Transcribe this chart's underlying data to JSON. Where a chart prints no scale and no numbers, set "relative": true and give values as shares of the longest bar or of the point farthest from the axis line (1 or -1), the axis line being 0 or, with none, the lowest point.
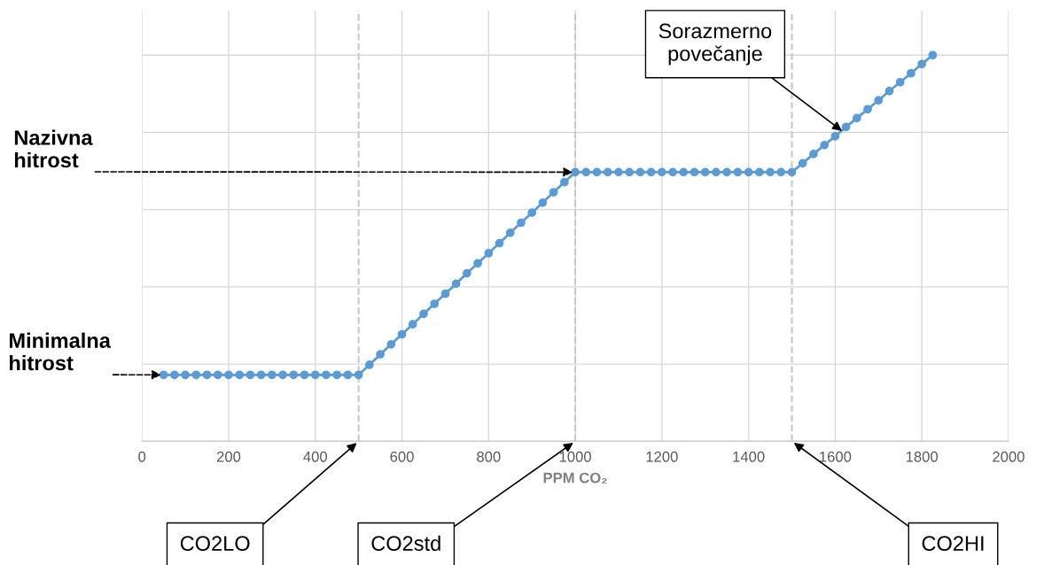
{
  "chart_data": {
    "type": "line",
    "relative": true,
    "xlabel": "PPM CO₂",
    "xlim": [
      0,
      2000
    ],
    "xticks": [
      0,
      200,
      400,
      600,
      800,
      1000,
      1200,
      1400,
      1600,
      1800,
      2000
    ],
    "grid": true,
    "tick_labels": "x",
    "marker": "circle",
    "line_style": "solid",
    "x": [
      50,
      75,
      100,
      125,
      150,
      175,
      200,
      225,
      250,
      275,
      300,
      325,
      350,
      375,
      400,
      425,
      450,
      475,
      500,
      525,
      550,
      575,
      600,
      625,
      650,
      675,
      700,
      725,
      750,
      775,
      800,
      825,
      850,
      875,
      900,
      925,
      950,
      975,
      1000,
      1025,
      1050,
      1075,
      1100,
      1125,
      1150,
      1175,
      1200,
      1225,
      1250,
      1275,
      1300,
      1325,
      1350,
      1375,
      1400,
      1425,
      1450,
      1475,
      1500,
      1525,
      1550,
      1575,
      1600,
      1625,
      1650,
      1675,
      1700,
      1725,
      1750,
      1775,
      1800,
      1825
    ],
    "series": [
      {
        "color": "#5b9bd5",
        "values": [
          0.172,
          0.172,
          0.172,
          0.172,
          0.172,
          0.172,
          0.172,
          0.172,
          0.172,
          0.172,
          0.172,
          0.172,
          0.172,
          0.172,
          0.172,
          0.172,
          0.172,
          0.172,
          0.172,
          0.198,
          0.225,
          0.251,
          0.277,
          0.303,
          0.33,
          0.356,
          0.382,
          0.408,
          0.435,
          0.461,
          0.487,
          0.513,
          0.54,
          0.566,
          0.592,
          0.618,
          0.645,
          0.671,
          0.697,
          0.697,
          0.697,
          0.697,
          0.697,
          0.697,
          0.697,
          0.697,
          0.697,
          0.697,
          0.697,
          0.697,
          0.697,
          0.697,
          0.697,
          0.697,
          0.697,
          0.697,
          0.697,
          0.697,
          0.697,
          0.72,
          0.744,
          0.767,
          0.79,
          0.814,
          0.837,
          0.86,
          0.883,
          0.907,
          0.93,
          0.953,
          0.977,
          1.0
        ]
      }
    ],
    "ref_lines": [
      {
        "axis": "x",
        "value": 500,
        "color": "#c8c8c8",
        "line_style": "dashed"
      },
      {
        "axis": "x",
        "value": 1000,
        "color": "#c8c8c8",
        "line_style": "dashed"
      },
      {
        "axis": "x",
        "value": 1500,
        "color": "#c8c8c8",
        "line_style": "dashed"
      }
    ],
    "annotations": [
      {
        "text": "Nazivna\nhitrost",
        "x": 1000,
        "y": 0.697
      },
      {
        "text": "Minimalna\nhitrost",
        "x": 50,
        "y": 0.172
      },
      {
        "text": "Sorazmerno\npovečanje",
        "x": 1620,
        "y": 0.8
      },
      {
        "text": "CO2LO",
        "x": 500,
        "y": 0
      },
      {
        "text": "CO2std",
        "x": 1000,
        "y": 0
      },
      {
        "text": "CO2HI",
        "x": 1500,
        "y": 0
      }
    ]
  }
}
